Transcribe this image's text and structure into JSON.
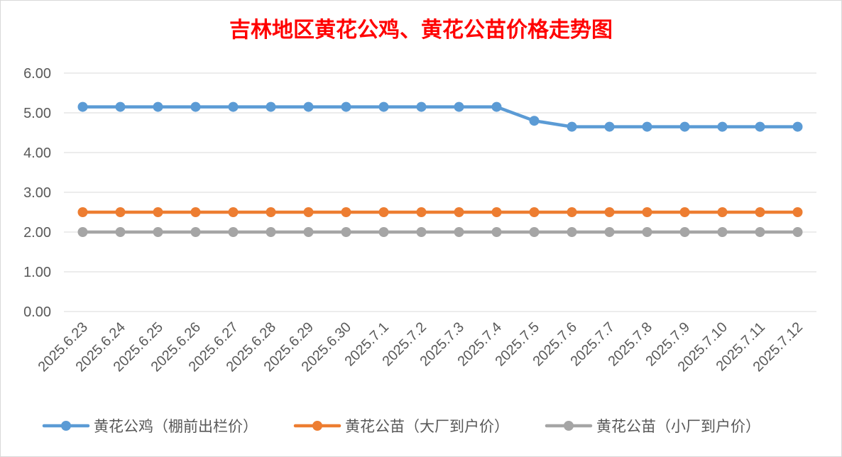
{
  "chart_data": {
    "type": "line",
    "title": "吉林地区黄花公鸡、黄花公苗价格走势图",
    "xlabel": "",
    "ylabel": "",
    "categories": [
      "2025.6.23",
      "2025.6.24",
      "2025.6.25",
      "2025.6.26",
      "2025.6.27",
      "2025.6.28",
      "2025.6.29",
      "2025.6.30",
      "2025.7.1",
      "2025.7.2",
      "2025.7.3",
      "2025.7.4",
      "2025.7.5",
      "2025.7.6",
      "2025.7.7",
      "2025.7.8",
      "2025.7.9",
      "2025.7.10",
      "2025.7.11",
      "2025.7.12"
    ],
    "yticks": [
      "0.00",
      "1.00",
      "2.00",
      "3.00",
      "4.00",
      "5.00",
      "6.00"
    ],
    "ylim": [
      0,
      6
    ],
    "grid": true,
    "legend_position": "bottom",
    "series": [
      {
        "name": "黄花公鸡（棚前出栏价）",
        "color": "#5b9bd5",
        "values": [
          5.15,
          5.15,
          5.15,
          5.15,
          5.15,
          5.15,
          5.15,
          5.15,
          5.15,
          5.15,
          5.15,
          5.15,
          4.8,
          4.65,
          4.65,
          4.65,
          4.65,
          4.65,
          4.65,
          4.65
        ]
      },
      {
        "name": "黄花公苗（大厂到户价）",
        "color": "#ed7d31",
        "values": [
          2.5,
          2.5,
          2.5,
          2.5,
          2.5,
          2.5,
          2.5,
          2.5,
          2.5,
          2.5,
          2.5,
          2.5,
          2.5,
          2.5,
          2.5,
          2.5,
          2.5,
          2.5,
          2.5,
          2.5
        ]
      },
      {
        "name": "黄花公苗（小厂到户价）",
        "color": "#a5a5a5",
        "values": [
          2.0,
          2.0,
          2.0,
          2.0,
          2.0,
          2.0,
          2.0,
          2.0,
          2.0,
          2.0,
          2.0,
          2.0,
          2.0,
          2.0,
          2.0,
          2.0,
          2.0,
          2.0,
          2.0,
          2.0
        ]
      }
    ]
  }
}
